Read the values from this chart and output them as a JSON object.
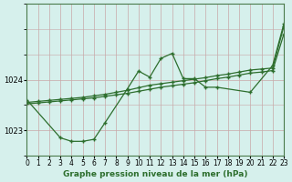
{
  "title": "Graphe pression niveau de la mer (hPa)",
  "bg_color": "#d6f0ec",
  "grid_color": "#c8a8a8",
  "line_color": "#2d6e2d",
  "xlim": [
    0,
    23
  ],
  "ylim": [
    1022.5,
    1025.5
  ],
  "yticks": [
    1023,
    1024
  ],
  "xticks": [
    0,
    1,
    2,
    3,
    4,
    5,
    6,
    7,
    8,
    9,
    10,
    11,
    12,
    13,
    14,
    15,
    16,
    17,
    18,
    19,
    20,
    21,
    22,
    23
  ],
  "lineA_x": [
    0,
    3,
    4,
    5,
    6,
    7,
    9,
    10,
    11,
    12,
    13,
    14,
    15,
    16,
    17,
    20,
    22,
    23
  ],
  "lineA_y": [
    1023.6,
    1022.85,
    1022.78,
    1022.78,
    1022.82,
    1023.15,
    1023.82,
    1024.17,
    1024.05,
    1024.42,
    1024.52,
    1024.02,
    1024.02,
    1023.85,
    1023.85,
    1023.75,
    1024.28,
    1025.1
  ],
  "lineB_x": [
    0,
    1,
    2,
    3,
    4,
    5,
    6,
    7,
    8,
    9,
    10,
    11,
    12,
    13,
    14,
    15,
    16,
    17,
    18,
    19,
    20,
    21,
    22,
    23
  ],
  "lineB_y": [
    1023.55,
    1023.57,
    1023.59,
    1023.61,
    1023.63,
    1023.65,
    1023.68,
    1023.71,
    1023.75,
    1023.79,
    1023.84,
    1023.89,
    1023.92,
    1023.95,
    1023.98,
    1024.01,
    1024.04,
    1024.08,
    1024.11,
    1024.15,
    1024.19,
    1024.21,
    1024.23,
    1025.05
  ],
  "lineC_x": [
    0,
    1,
    2,
    3,
    4,
    5,
    6,
    7,
    8,
    9,
    10,
    11,
    12,
    13,
    14,
    15,
    16,
    17,
    18,
    19,
    20,
    21,
    22,
    23
  ],
  "lineC_y": [
    1023.52,
    1023.54,
    1023.56,
    1023.58,
    1023.6,
    1023.62,
    1023.64,
    1023.67,
    1023.7,
    1023.73,
    1023.77,
    1023.81,
    1023.85,
    1023.88,
    1023.91,
    1023.94,
    1023.98,
    1024.02,
    1024.05,
    1024.09,
    1024.13,
    1024.15,
    1024.18,
    1024.9
  ]
}
